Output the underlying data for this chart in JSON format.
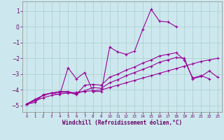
{
  "title": "",
  "xlabel": "Windchill (Refroidissement éolien,°C)",
  "ylabel": "",
  "background_color": "#cce8ee",
  "grid_color": "#aacccc",
  "line_color": "#990099",
  "xlim": [
    -0.5,
    23.5
  ],
  "ylim": [
    -5.4,
    1.6
  ],
  "yticks": [
    1,
    0,
    -1,
    -2,
    -3,
    -4,
    -5
  ],
  "xticks": [
    0,
    1,
    2,
    3,
    4,
    5,
    6,
    7,
    8,
    9,
    10,
    11,
    12,
    13,
    14,
    15,
    16,
    17,
    18,
    19,
    20,
    21,
    22,
    23
  ],
  "series": [
    {
      "x": [
        0,
        1,
        2,
        3,
        4,
        5,
        6,
        7,
        8,
        9,
        10,
        11,
        12,
        13,
        14,
        15,
        16,
        17,
        18
      ],
      "y": [
        -4.9,
        -4.8,
        -4.3,
        -4.2,
        -4.3,
        -2.6,
        -3.3,
        -2.9,
        -4.1,
        -4.1,
        -1.3,
        -1.6,
        -1.75,
        -1.55,
        -0.15,
        1.1,
        0.35,
        0.3,
        0.0
      ]
    },
    {
      "x": [
        0,
        1,
        2,
        3,
        4,
        5,
        6,
        7,
        8,
        9,
        10,
        11,
        12,
        13,
        14,
        15,
        16,
        17,
        18,
        19,
        20,
        21,
        22
      ],
      "y": [
        -4.9,
        -4.65,
        -4.35,
        -4.2,
        -4.15,
        -4.15,
        -4.3,
        -3.7,
        -3.65,
        -3.7,
        -3.2,
        -3.0,
        -2.75,
        -2.55,
        -2.3,
        -2.1,
        -1.85,
        -1.75,
        -1.65,
        -2.1,
        -3.25,
        -3.1,
        -3.3
      ]
    },
    {
      "x": [
        0,
        1,
        2,
        3,
        4,
        5,
        6,
        7,
        8,
        9,
        10,
        11,
        12,
        13,
        14,
        15,
        16,
        17,
        18,
        19,
        20,
        21,
        22,
        23
      ],
      "y": [
        -4.9,
        -4.6,
        -4.35,
        -4.2,
        -4.1,
        -4.1,
        -4.25,
        -4.05,
        -3.85,
        -3.9,
        -3.55,
        -3.35,
        -3.1,
        -2.9,
        -2.7,
        -2.5,
        -2.25,
        -2.1,
        -1.95,
        -2.0,
        -3.3,
        -3.15,
        -2.8,
        -3.2
      ]
    },
    {
      "x": [
        0,
        1,
        2,
        3,
        4,
        5,
        6,
        7,
        8,
        9,
        10,
        11,
        12,
        13,
        14,
        15,
        16,
        17,
        18,
        19,
        20,
        21,
        22,
        23
      ],
      "y": [
        -4.9,
        -4.7,
        -4.5,
        -4.35,
        -4.25,
        -4.2,
        -4.15,
        -4.1,
        -4.05,
        -4.0,
        -3.85,
        -3.7,
        -3.55,
        -3.4,
        -3.25,
        -3.1,
        -2.95,
        -2.8,
        -2.65,
        -2.5,
        -2.35,
        -2.2,
        -2.1,
        -2.0
      ]
    }
  ]
}
